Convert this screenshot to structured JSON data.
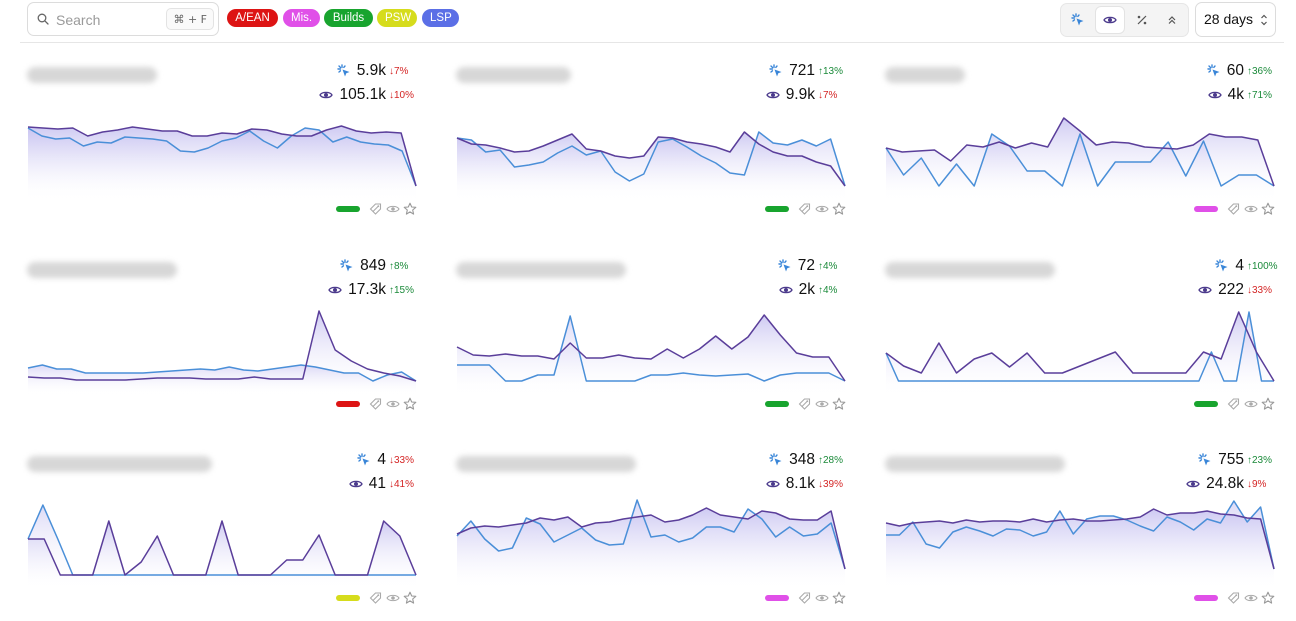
{
  "search": {
    "placeholder": "Search",
    "shortcut": "⌘ + F"
  },
  "tags": [
    {
      "label": "A/EAN",
      "color": "#dd1414"
    },
    {
      "label": "Mis.",
      "color": "#e050e8"
    },
    {
      "label": "Builds",
      "color": "#18a42e"
    },
    {
      "label": "PSW",
      "color": "#d6dc1c"
    },
    {
      "label": "LSP",
      "color": "#5b6fe6"
    }
  ],
  "view_toggle": {
    "icons": [
      "sparkle-icon",
      "eye-icon",
      "percent-icon",
      "chevrons-up-icon"
    ],
    "active": "eye-icon"
  },
  "range": {
    "label": "28 days"
  },
  "colors": {
    "clicks_line": "#4a8fd8",
    "impressions_line": "#5a3e9a",
    "area_top": "#c9c4f0",
    "up": "#1b8a3a",
    "down": "#d42525"
  },
  "cards": [
    {
      "clicks": "5.9k",
      "clicks_delta": "↓7%",
      "clicks_dir": "down",
      "impr": "105.1k",
      "impr_delta": "↓10%",
      "impr_dir": "down",
      "tag_color": "#18a42e",
      "impr_series": [
        73,
        72,
        71,
        72,
        64,
        68,
        70,
        73,
        71,
        69,
        69,
        64,
        64,
        67,
        66,
        71,
        70,
        66,
        64,
        64,
        70,
        74,
        69,
        67,
        68,
        67,
        14
      ],
      "clicks_series": [
        72,
        64,
        61,
        62,
        54,
        58,
        57,
        63,
        62,
        61,
        59,
        49,
        48,
        52,
        59,
        62,
        69,
        59,
        52,
        64,
        72,
        70,
        58,
        63,
        58,
        56,
        55,
        49,
        14
      ]
    },
    {
      "clicks": "721",
      "clicks_delta": "↑13%",
      "clicks_dir": "up",
      "impr": "9.9k",
      "impr_delta": "↓7%",
      "impr_dir": "down",
      "tag_color": "#18a42e",
      "impr_series": [
        62,
        56,
        55,
        52,
        48,
        49,
        54,
        60,
        66,
        51,
        49,
        44,
        42,
        44,
        63,
        62,
        58,
        56,
        53,
        48,
        68,
        56,
        48,
        44,
        44,
        38,
        34,
        14
      ],
      "clicks_series": [
        62,
        60,
        48,
        50,
        33,
        35,
        38,
        47,
        54,
        45,
        49,
        28,
        19,
        26,
        58,
        61,
        53,
        44,
        37,
        27,
        25,
        68,
        57,
        55,
        60,
        54,
        61,
        14
      ]
    },
    {
      "clicks": "60",
      "clicks_delta": "↑36%",
      "clicks_dir": "up",
      "impr": "4k",
      "impr_delta": "↑71%",
      "impr_dir": "up",
      "tag_color": "#e050e8",
      "impr_series": [
        52,
        48,
        49,
        50,
        39,
        55,
        53,
        58,
        52,
        57,
        53,
        82,
        69,
        55,
        58,
        57,
        53,
        52,
        51,
        55,
        66,
        63,
        63,
        60,
        14
      ],
      "clicks_series": [
        52,
        25,
        42,
        14,
        36,
        14,
        66,
        54,
        29,
        29,
        14,
        66,
        14,
        38,
        38,
        38,
        58,
        24,
        59,
        14,
        25,
        25,
        14
      ]
    },
    {
      "clicks": "849",
      "clicks_delta": "↑8%",
      "clicks_dir": "up",
      "impr": "17.3k",
      "impr_delta": "↑15%",
      "impr_dir": "up",
      "tag_color": "#dd1414",
      "impr_series": [
        18,
        17,
        17,
        15,
        15,
        15,
        15,
        16,
        17,
        17,
        17,
        16,
        16,
        16,
        18,
        16,
        16,
        16,
        84,
        45,
        34,
        26,
        22,
        19,
        14
      ],
      "clicks_series": [
        27,
        30,
        26,
        26,
        22,
        22,
        22,
        22,
        22,
        23,
        24,
        25,
        26,
        25,
        28,
        25,
        24,
        26,
        28,
        30,
        28,
        25,
        22,
        22,
        14,
        20,
        23,
        14
      ]
    },
    {
      "clicks": "72",
      "clicks_delta": "↑4%",
      "clicks_dir": "up",
      "impr": "2k",
      "impr_delta": "↑4%",
      "impr_dir": "up",
      "tag_color": "#18a42e",
      "impr_series": [
        48,
        40,
        39,
        41,
        39,
        39,
        36,
        52,
        37,
        37,
        40,
        37,
        36,
        46,
        37,
        46,
        59,
        46,
        58,
        80,
        60,
        42,
        38,
        38,
        14
      ],
      "clicks_series": [
        30,
        30,
        30,
        14,
        14,
        20,
        20,
        79,
        14,
        14,
        14,
        14,
        20,
        20,
        22,
        20,
        19,
        20,
        21,
        14,
        20,
        22,
        22,
        22,
        14
      ]
    },
    {
      "clicks": "4",
      "clicks_delta": "↑100%",
      "clicks_dir": "up",
      "impr": "222",
      "impr_delta": "↓33%",
      "impr_dir": "down",
      "tag_color": "#18a42e",
      "impr_series": [
        42,
        29,
        22,
        52,
        22,
        36,
        42,
        28,
        42,
        22,
        22,
        29,
        36,
        43,
        22,
        22,
        22,
        22,
        43,
        36,
        83,
        43,
        14
      ],
      "clicks_series": [
        42,
        14,
        14,
        14,
        14,
        14,
        14,
        14,
        14,
        14,
        14,
        14,
        14,
        14,
        14,
        14,
        14,
        14,
        14,
        14,
        14,
        14,
        14,
        14,
        14,
        14,
        43,
        14,
        14,
        83,
        14,
        14
      ]
    },
    {
      "clicks": "4",
      "clicks_delta": "↓33%",
      "clicks_dir": "down",
      "impr": "41",
      "impr_delta": "↓41%",
      "impr_dir": "down",
      "tag_color": "#d6dc1c",
      "impr_series": [
        50,
        50,
        14,
        14,
        14,
        68,
        14,
        27,
        53,
        14,
        14,
        14,
        68,
        14,
        14,
        14,
        29,
        29,
        54,
        14,
        14,
        14,
        68,
        53,
        14
      ],
      "clicks_series": [
        50,
        84,
        50,
        14,
        14,
        14,
        14,
        14,
        14,
        14,
        14,
        14,
        14,
        14,
        14,
        14,
        14,
        14,
        14,
        14,
        14,
        14,
        14,
        14,
        14,
        14,
        14
      ]
    },
    {
      "clicks": "348",
      "clicks_delta": "↑28%",
      "clicks_dir": "up",
      "impr": "8.1k",
      "impr_delta": "↓39%",
      "impr_dir": "down",
      "tag_color": "#e050e8",
      "impr_series": [
        55,
        61,
        63,
        62,
        64,
        66,
        71,
        69,
        72,
        62,
        66,
        67,
        70,
        72,
        74,
        67,
        69,
        74,
        81,
        74,
        72,
        70,
        78,
        76,
        70,
        69,
        69,
        78,
        20
      ],
      "clicks_series": [
        53,
        68,
        50,
        38,
        41,
        71,
        65,
        47,
        54,
        61,
        49,
        44,
        45,
        89,
        52,
        54,
        47,
        51,
        62,
        62,
        57,
        80,
        70,
        52,
        62,
        53,
        55,
        66,
        20
      ]
    },
    {
      "clicks": "755",
      "clicks_delta": "↑23%",
      "clicks_dir": "up",
      "impr": "24.8k",
      "impr_delta": "↓9%",
      "impr_dir": "down",
      "tag_color": "#e050e8",
      "impr_series": [
        66,
        63,
        66,
        67,
        68,
        66,
        69,
        67,
        68,
        68,
        67,
        70,
        67,
        69,
        70,
        68,
        68,
        69,
        70,
        72,
        80,
        74,
        76,
        76,
        78,
        75,
        74,
        71,
        70,
        20
      ],
      "clicks_series": [
        54,
        54,
        67,
        45,
        41,
        57,
        62,
        58,
        53,
        60,
        59,
        53,
        57,
        78,
        55,
        70,
        73,
        73,
        69,
        63,
        58,
        72,
        67,
        59,
        70,
        66,
        88,
        67,
        82,
        20
      ]
    }
  ]
}
